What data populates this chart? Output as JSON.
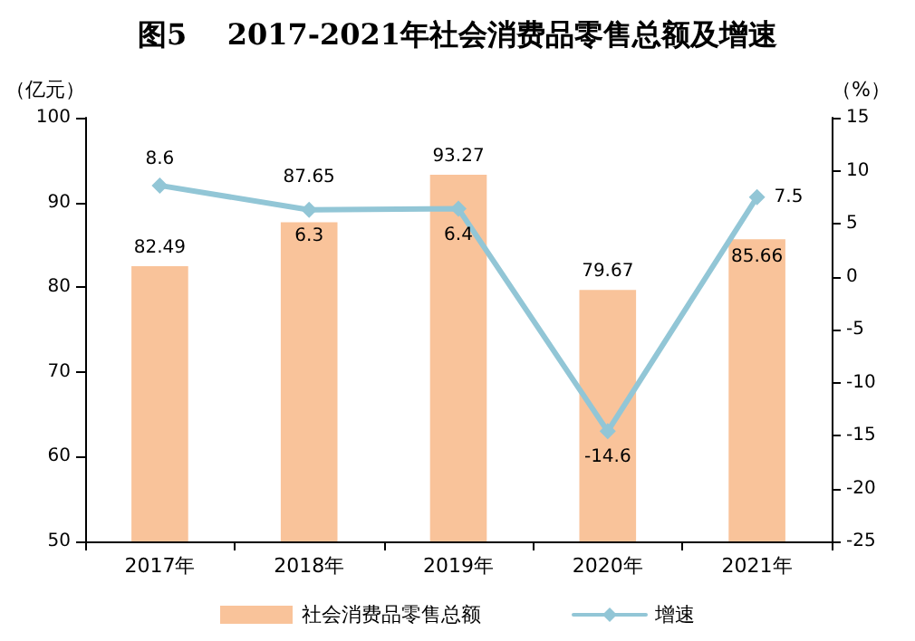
{
  "chart_data": {
    "type": "bar",
    "title": "图5    2017-2021年社会消费品零售总额及增速",
    "categories": [
      "2017年",
      "2018年",
      "2019年",
      "2020年",
      "2021年"
    ],
    "ylabel": "（亿元）",
    "y2label": "（%）",
    "series": [
      {
        "name": "社会消费品零售总额",
        "color": "#f9c39a",
        "values": [
          82.49,
          87.65,
          93.27,
          79.67,
          85.66
        ]
      },
      {
        "name": "增速",
        "type": "line",
        "axis": "y2",
        "color": "#92c6d6",
        "marker": "diamond",
        "values": [
          8.6,
          6.3,
          6.4,
          -14.6,
          7.5
        ]
      }
    ],
    "ylim": [
      50,
      100
    ],
    "yticks": [
      50,
      60,
      70,
      80,
      90,
      100
    ],
    "y2lim": [
      -25,
      15
    ],
    "y2ticks": [
      -25,
      -20,
      -15,
      -10,
      -5,
      0,
      5,
      10,
      15
    ],
    "data_labels": true,
    "grid": false,
    "legend": "bottom"
  }
}
